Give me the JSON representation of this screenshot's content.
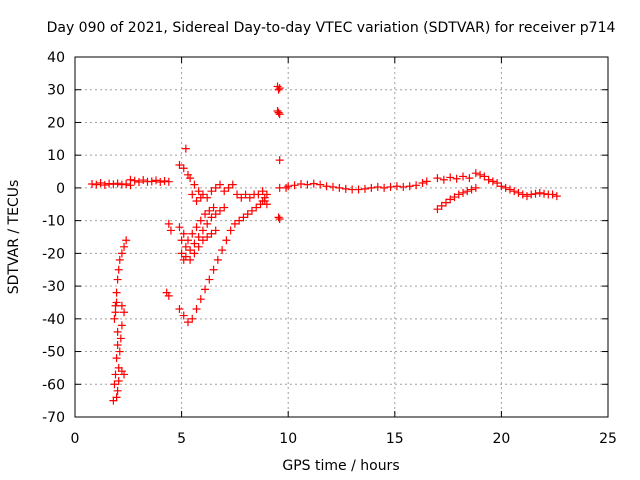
{
  "chart_data": {
    "type": "scatter",
    "title": "Day 090 of 2021, Sidereal Day-to-day VTEC variation (SDTVAR) for receiver p714",
    "xlabel": "GPS time / hours",
    "ylabel": "SDTVAR / TECUs",
    "xlim": [
      0,
      25
    ],
    "ylim": [
      -70,
      40
    ],
    "xticks": [
      0,
      5,
      10,
      15,
      20,
      25
    ],
    "yticks": [
      -70,
      -60,
      -50,
      -40,
      -30,
      -20,
      -10,
      0,
      10,
      20,
      30,
      40
    ],
    "grid": true,
    "marker": "+",
    "marker_color": "#ff0000",
    "series": [
      {
        "name": "SDTVAR",
        "points": [
          [
            0.8,
            1.2
          ],
          [
            1.0,
            1.0
          ],
          [
            1.2,
            1.5
          ],
          [
            1.4,
            0.9
          ],
          [
            1.6,
            1.3
          ],
          [
            1.8,
            1.1
          ],
          [
            2.0,
            1.4
          ],
          [
            2.2,
            1.0
          ],
          [
            2.4,
            1.2
          ],
          [
            2.6,
            0.8
          ],
          [
            2.6,
            2.5
          ],
          [
            2.8,
            2.2
          ],
          [
            3.0,
            1.8
          ],
          [
            3.2,
            2.4
          ],
          [
            3.4,
            1.9
          ],
          [
            3.6,
            2.0
          ],
          [
            3.8,
            2.3
          ],
          [
            4.0,
            1.8
          ],
          [
            4.2,
            2.1
          ],
          [
            4.4,
            1.9
          ],
          [
            1.8,
            -65
          ],
          [
            1.85,
            -60
          ],
          [
            1.9,
            -57
          ],
          [
            1.95,
            -52
          ],
          [
            2.0,
            -48
          ],
          [
            2.0,
            -44
          ],
          [
            1.85,
            -40
          ],
          [
            1.9,
            -36
          ],
          [
            1.95,
            -32
          ],
          [
            2.0,
            -28
          ],
          [
            2.05,
            -25
          ],
          [
            2.1,
            -22
          ],
          [
            2.2,
            -20
          ],
          [
            2.3,
            -18
          ],
          [
            2.4,
            -16
          ],
          [
            1.9,
            -38
          ],
          [
            1.95,
            -35
          ],
          [
            2.2,
            -36
          ],
          [
            2.3,
            -38
          ],
          [
            2.2,
            -42
          ],
          [
            2.15,
            -46
          ],
          [
            2.1,
            -50
          ],
          [
            2.05,
            -55
          ],
          [
            2.2,
            -56
          ],
          [
            2.3,
            -57
          ],
          [
            2.05,
            -59
          ],
          [
            2.0,
            -62
          ],
          [
            1.95,
            -64
          ],
          [
            4.3,
            -32
          ],
          [
            4.4,
            -33
          ],
          [
            4.9,
            -37
          ],
          [
            5.1,
            -39
          ],
          [
            5.3,
            -41
          ],
          [
            5.5,
            -40
          ],
          [
            5.7,
            -37
          ],
          [
            5.9,
            -34
          ],
          [
            6.1,
            -31
          ],
          [
            6.3,
            -28
          ],
          [
            6.5,
            -25
          ],
          [
            6.7,
            -22
          ],
          [
            6.9,
            -19
          ],
          [
            7.1,
            -16
          ],
          [
            7.3,
            -13
          ],
          [
            7.5,
            -11
          ],
          [
            7.7,
            -10
          ],
          [
            7.9,
            -9
          ],
          [
            8.1,
            -8
          ],
          [
            8.3,
            -7
          ],
          [
            8.5,
            -6
          ],
          [
            8.7,
            -5
          ],
          [
            8.9,
            -4
          ],
          [
            5.0,
            -16
          ],
          [
            5.2,
            -18
          ],
          [
            5.4,
            -19
          ],
          [
            5.6,
            -17
          ],
          [
            5.8,
            -15
          ],
          [
            6.0,
            -13
          ],
          [
            6.2,
            -11
          ],
          [
            6.4,
            -9
          ],
          [
            6.6,
            -8
          ],
          [
            6.8,
            -7
          ],
          [
            7.0,
            -6
          ],
          [
            4.9,
            -12
          ],
          [
            5.1,
            -14
          ],
          [
            5.3,
            -16
          ],
          [
            5.5,
            -14
          ],
          [
            5.7,
            -12
          ],
          [
            5.9,
            -10
          ],
          [
            6.1,
            -8
          ],
          [
            6.3,
            -7
          ],
          [
            6.5,
            -6
          ],
          [
            5.2,
            -21
          ],
          [
            5.4,
            -22
          ],
          [
            5.6,
            -20
          ],
          [
            5.8,
            -18
          ],
          [
            6.0,
            -16
          ],
          [
            6.2,
            -15
          ],
          [
            6.4,
            -14
          ],
          [
            6.6,
            -13
          ],
          [
            4.4,
            -11
          ],
          [
            4.5,
            -13
          ],
          [
            5.0,
            -20
          ],
          [
            5.1,
            -22
          ],
          [
            4.9,
            7
          ],
          [
            5.1,
            6
          ],
          [
            5.2,
            12
          ],
          [
            5.3,
            4
          ],
          [
            5.4,
            3
          ],
          [
            5.6,
            1
          ],
          [
            5.8,
            -1
          ],
          [
            6.0,
            -2
          ],
          [
            6.2,
            -3
          ],
          [
            6.4,
            -1
          ],
          [
            6.6,
            0
          ],
          [
            6.8,
            1
          ],
          [
            7.0,
            -1
          ],
          [
            7.2,
            0
          ],
          [
            7.4,
            1
          ],
          [
            5.5,
            -2
          ],
          [
            5.7,
            -4
          ],
          [
            5.9,
            -3
          ],
          [
            7.6,
            -2
          ],
          [
            7.8,
            -3
          ],
          [
            8.0,
            -2
          ],
          [
            8.2,
            -3
          ],
          [
            8.4,
            -2
          ],
          [
            8.6,
            -2
          ],
          [
            8.8,
            -1
          ],
          [
            9.0,
            -2
          ],
          [
            8.9,
            -3
          ],
          [
            8.8,
            -4
          ],
          [
            9.0,
            -5
          ],
          [
            9.5,
            31
          ],
          [
            9.55,
            30
          ],
          [
            9.6,
            30.5
          ],
          [
            9.5,
            23.5
          ],
          [
            9.55,
            23
          ],
          [
            9.6,
            22.5
          ],
          [
            9.6,
            8.5
          ],
          [
            9.55,
            -9
          ],
          [
            9.6,
            -9.5
          ],
          [
            9.6,
            0
          ],
          [
            9.9,
            0
          ],
          [
            10.0,
            0.5
          ],
          [
            10.3,
            0.8
          ],
          [
            10.6,
            1.2
          ],
          [
            10.9,
            1.0
          ],
          [
            11.2,
            1.3
          ],
          [
            11.5,
            1.0
          ],
          [
            11.8,
            0.5
          ],
          [
            12.1,
            0.3
          ],
          [
            12.4,
            0
          ],
          [
            12.7,
            -0.3
          ],
          [
            13.0,
            -0.5
          ],
          [
            13.3,
            -0.5
          ],
          [
            13.6,
            -0.3
          ],
          [
            13.9,
            0
          ],
          [
            14.2,
            0.3
          ],
          [
            14.5,
            0
          ],
          [
            14.8,
            0.3
          ],
          [
            15.1,
            0.5
          ],
          [
            15.4,
            0.3
          ],
          [
            15.7,
            0.5
          ],
          [
            16.0,
            0.8
          ],
          [
            16.3,
            1.5
          ],
          [
            16.5,
            2.0
          ],
          [
            17.0,
            3.0
          ],
          [
            17.3,
            2.5
          ],
          [
            17.6,
            3.2
          ],
          [
            17.9,
            2.8
          ],
          [
            18.2,
            3.5
          ],
          [
            18.5,
            3.0
          ],
          [
            18.8,
            4.5
          ],
          [
            19.0,
            4.0
          ],
          [
            19.2,
            3.5
          ],
          [
            19.4,
            2.5
          ],
          [
            19.6,
            2.0
          ],
          [
            19.8,
            1.5
          ],
          [
            20.0,
            0.5
          ],
          [
            20.2,
            0
          ],
          [
            20.4,
            -0.5
          ],
          [
            20.6,
            -1.0
          ],
          [
            20.8,
            -1.5
          ],
          [
            21.0,
            -2.0
          ],
          [
            21.2,
            -2.5
          ],
          [
            21.4,
            -2.0
          ],
          [
            21.6,
            -1.8
          ],
          [
            21.8,
            -1.5
          ],
          [
            22.0,
            -1.8
          ],
          [
            22.2,
            -2.0
          ],
          [
            22.4,
            -2.0
          ],
          [
            22.6,
            -2.5
          ],
          [
            17.0,
            -6.5
          ],
          [
            17.2,
            -5.5
          ],
          [
            17.4,
            -4.5
          ],
          [
            17.6,
            -3.5
          ],
          [
            17.8,
            -2.8
          ],
          [
            18.0,
            -2.0
          ],
          [
            18.2,
            -1.5
          ],
          [
            18.4,
            -1.0
          ],
          [
            18.6,
            -0.5
          ],
          [
            18.8,
            0
          ]
        ]
      }
    ]
  }
}
